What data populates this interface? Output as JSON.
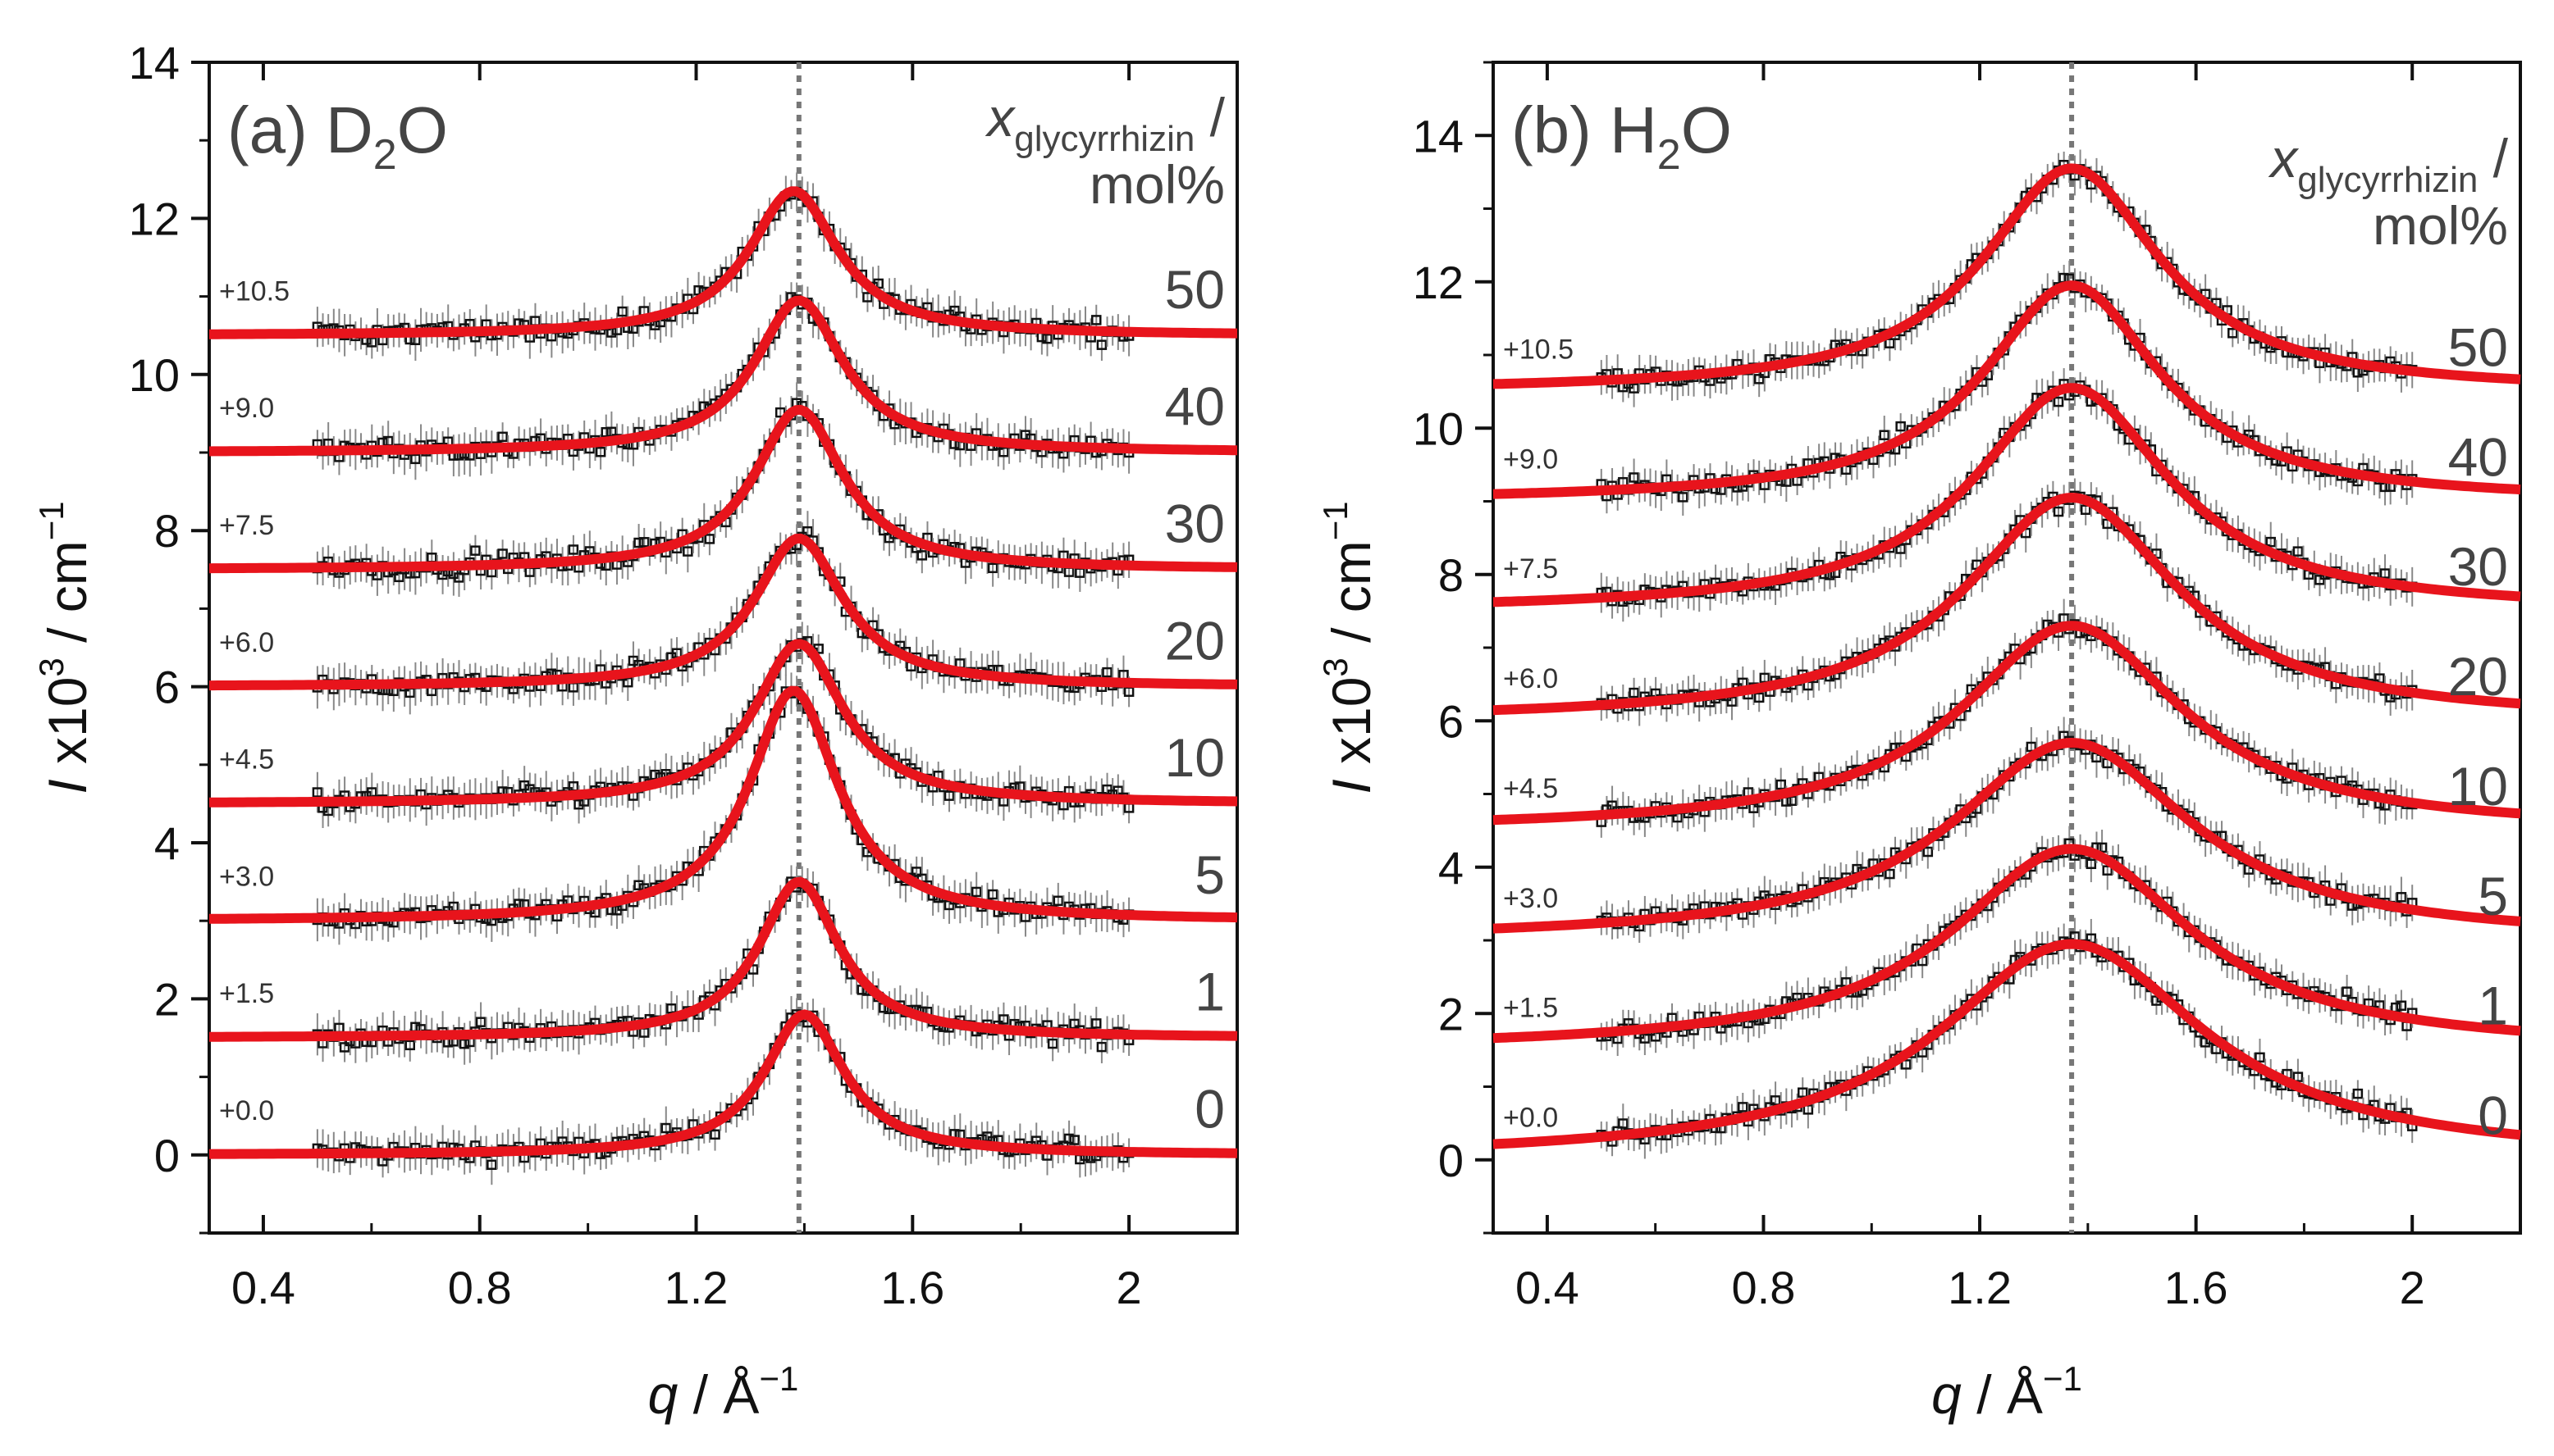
{
  "chart_data": [
    {
      "type": "line",
      "panel_label": "(a) D",
      "panel_solvent_sub": "2",
      "panel_solvent_tail": "O",
      "xlabel": "q / Å",
      "xlabel_sup": "−1",
      "ylabel": "I x10",
      "ylabel_sup3": "3",
      "ylabel_tail": " / cm",
      "ylabel_sup": "−1",
      "xlim": [
        0.3,
        2.2
      ],
      "ylim": [
        -1,
        14
      ],
      "x_ticks": [
        0.4,
        0.8,
        1.2,
        1.6,
        2.0
      ],
      "x_tick_labels": [
        "0.4",
        "0.8",
        "1.2",
        "1.6",
        "2"
      ],
      "y_ticks": [
        0,
        2,
        4,
        6,
        8,
        10,
        12,
        14
      ],
      "y_tick_labels": [
        "0",
        "2",
        "4",
        "6",
        "8",
        "10",
        "12",
        "14"
      ],
      "peak_line_q": 1.39,
      "legend_title": "x",
      "legend_title_sub": "glycyrrhizin",
      "legend_title_tail": " /",
      "legend_unit": "mol%",
      "data_q_range": [
        0.5,
        2.0
      ],
      "series": [
        {
          "name": "0",
          "offset_label": "+0.0",
          "baseline": 0.0,
          "peak_q": 1.4,
          "peak_height": 1.8,
          "width": 0.09,
          "slope": 0.0
        },
        {
          "name": "1",
          "offset_label": "+1.5",
          "baseline": 1.5,
          "peak_q": 1.39,
          "peak_height": 2.0,
          "width": 0.09,
          "slope": 0.0
        },
        {
          "name": "5",
          "offset_label": "+3.0",
          "baseline": 3.0,
          "peak_q": 1.38,
          "peak_height": 2.95,
          "width": 0.1,
          "slope": 0.0
        },
        {
          "name": "10",
          "offset_label": "+4.5",
          "baseline": 4.5,
          "peak_q": 1.39,
          "peak_height": 2.05,
          "width": 0.1,
          "slope": 0.0
        },
        {
          "name": "20",
          "offset_label": "+6.0",
          "baseline": 6.0,
          "peak_q": 1.39,
          "peak_height": 1.9,
          "width": 0.1,
          "slope": 0.0
        },
        {
          "name": "30",
          "offset_label": "+7.5",
          "baseline": 7.5,
          "peak_q": 1.39,
          "peak_height": 2.05,
          "width": 0.1,
          "slope": 0.0
        },
        {
          "name": "40",
          "offset_label": "+9.0",
          "baseline": 9.0,
          "peak_q": 1.39,
          "peak_height": 1.95,
          "width": 0.1,
          "slope": 0.0
        },
        {
          "name": "50",
          "offset_label": "+10.5",
          "baseline": 10.5,
          "peak_q": 1.38,
          "peak_height": 1.85,
          "width": 0.1,
          "slope": 0.0
        }
      ]
    },
    {
      "type": "line",
      "panel_label": "(b) H",
      "panel_solvent_sub": "2",
      "panel_solvent_tail": "O",
      "xlabel": "q / Å",
      "xlabel_sup": "−1",
      "ylabel": "I x10",
      "ylabel_sup3": "3",
      "ylabel_tail": " / cm",
      "ylabel_sup": "−1",
      "xlim": [
        0.3,
        2.2
      ],
      "ylim": [
        -1,
        15
      ],
      "x_ticks": [
        0.4,
        0.8,
        1.2,
        1.6,
        2.0
      ],
      "x_tick_labels": [
        "0.4",
        "0.8",
        "1.2",
        "1.6",
        "2"
      ],
      "y_ticks": [
        0,
        2,
        4,
        6,
        8,
        10,
        12,
        14
      ],
      "y_tick_labels": [
        "0",
        "2",
        "4",
        "6",
        "8",
        "10",
        "12",
        "14"
      ],
      "peak_line_q": 1.37,
      "legend_title": "x",
      "legend_title_sub": "glycyrrhizin",
      "legend_title_tail": " /",
      "legend_unit": "mol%",
      "data_q_range": [
        0.5,
        2.0
      ],
      "series": [
        {
          "name": "0",
          "offset_label": "+0.0",
          "baseline": 0.0,
          "peak_q": 1.37,
          "peak_height": 2.95,
          "width": 0.3,
          "slope": 0.0
        },
        {
          "name": "1",
          "offset_label": "+1.5",
          "baseline": 1.5,
          "peak_q": 1.37,
          "peak_height": 2.75,
          "width": 0.27,
          "slope": 0.0
        },
        {
          "name": "5",
          "offset_label": "+3.0",
          "baseline": 3.0,
          "peak_q": 1.37,
          "peak_height": 2.7,
          "width": 0.27,
          "slope": 0.0
        },
        {
          "name": "10",
          "offset_label": "+4.5",
          "baseline": 4.5,
          "peak_q": 1.37,
          "peak_height": 2.8,
          "width": 0.25,
          "slope": 0.0
        },
        {
          "name": "20",
          "offset_label": "+6.0",
          "baseline": 6.0,
          "peak_q": 1.37,
          "peak_height": 3.05,
          "width": 0.24,
          "slope": 0.0
        },
        {
          "name": "30",
          "offset_label": "+7.5",
          "baseline": 7.5,
          "peak_q": 1.37,
          "peak_height": 3.05,
          "width": 0.22,
          "slope": 0.0
        },
        {
          "name": "40",
          "offset_label": "+9.0",
          "baseline": 9.0,
          "peak_q": 1.37,
          "peak_height": 2.95,
          "width": 0.2,
          "slope": 0.0
        },
        {
          "name": "50",
          "offset_label": "+10.5",
          "baseline": 10.5,
          "peak_q": 1.37,
          "peak_height": 3.05,
          "width": 0.2,
          "slope": 0.0
        }
      ]
    }
  ],
  "colors": {
    "fit_line": "#e8141c",
    "data_marker": "#111111",
    "error_bar": "#888888",
    "peak_line": "#777777",
    "axis": "#111111"
  }
}
